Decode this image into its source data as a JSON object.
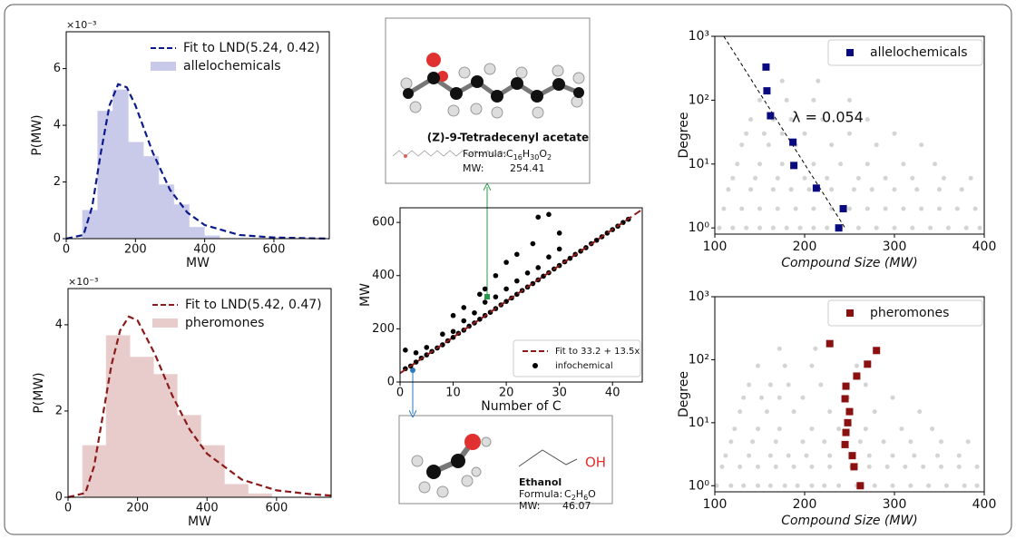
{
  "chart_data": [
    {
      "type": "histogram",
      "xlabel": "MW",
      "ylabel": "P(MW)",
      "y_offset_label": "×10⁻³",
      "xlim": [
        0,
        760
      ],
      "ylim": [
        0,
        7.3
      ],
      "xticks": [
        0,
        200,
        400,
        600
      ],
      "yticks": [
        0,
        2,
        4,
        6
      ],
      "legend": "upper right",
      "bins": [
        47,
        91,
        135,
        179,
        223,
        267,
        311,
        355,
        399,
        443
      ],
      "series": [
        {
          "name": "allelochemicals",
          "color": "#c9c9e9",
          "values": [
            1.0,
            4.5,
            5.25,
            3.4,
            2.9,
            1.9,
            1.2,
            0.4,
            0.1
          ]
        }
      ],
      "fit": {
        "name": "Fit to LND(5.24, 0.42)",
        "color": "#0c1b8a",
        "x": [
          0,
          50,
          75,
          100,
          125,
          150,
          175,
          200,
          250,
          300,
          350,
          400,
          500,
          600,
          760
        ],
        "y": [
          0,
          0.13,
          1.13,
          3.03,
          4.7,
          5.45,
          5.34,
          4.7,
          3.04,
          1.72,
          0.92,
          0.48,
          0.13,
          0.04,
          0
        ]
      }
    },
    {
      "type": "histogram",
      "xlabel": "MW",
      "ylabel": "P(MW)",
      "y_offset_label": "×10⁻³",
      "xlim": [
        0,
        757
      ],
      "ylim": [
        0,
        4.84
      ],
      "xticks": [
        0,
        200,
        400,
        600
      ],
      "yticks": [
        0,
        2,
        4
      ],
      "legend": "upper right",
      "bins": [
        42,
        110,
        178,
        246,
        314,
        382,
        450,
        518,
        586
      ],
      "series": [
        {
          "name": "pheromones",
          "color": "#e8cccc",
          "values": [
            1.2,
            3.75,
            3.25,
            2.85,
            1.9,
            1.2,
            0.3,
            0.08
          ]
        }
      ],
      "fit": {
        "name": "Fit to LND(5.42, 0.47)",
        "color": "#8b1a1a",
        "x": [
          0,
          50,
          75,
          100,
          125,
          150,
          175,
          200,
          250,
          300,
          350,
          400,
          500,
          600,
          700,
          757
        ],
        "y": [
          0,
          0.1,
          0.72,
          1.89,
          3.07,
          3.87,
          4.19,
          4.1,
          3.32,
          2.36,
          1.57,
          1.01,
          0.41,
          0.16,
          0.07,
          0.04
        ]
      }
    },
    {
      "type": "scatter",
      "xlabel": "Number of C",
      "ylabel": "MW",
      "xlim": [
        0,
        45.6
      ],
      "ylim": [
        0,
        655
      ],
      "xticks": [
        0,
        10,
        20,
        30,
        40
      ],
      "yticks": [
        0,
        200,
        400,
        600
      ],
      "legend": "lower right",
      "series": [
        {
          "name": "infochemical",
          "color": "#000000",
          "x": [
            2,
            3,
            4,
            5,
            6,
            7,
            8,
            9,
            10,
            10,
            11,
            12,
            12,
            13,
            14,
            14,
            15,
            16,
            16,
            17,
            18,
            18,
            19,
            20,
            20,
            21,
            22,
            22,
            23,
            24,
            24,
            25,
            26,
            26,
            27,
            28,
            28,
            29,
            30,
            30,
            31,
            32,
            33,
            34,
            35,
            36,
            37,
            38,
            39,
            40,
            41,
            42,
            43,
            10,
            12,
            15,
            16,
            18,
            20,
            22,
            25,
            28,
            30,
            1,
            1,
            3,
            5,
            8,
            26
          ],
          "y": [
            60,
            75,
            90,
            102,
            115,
            128,
            140,
            155,
            168,
            190,
            183,
            195,
            230,
            210,
            222,
            260,
            236,
            250,
            300,
            262,
            276,
            320,
            290,
            303,
            350,
            316,
            330,
            380,
            344,
            357,
            410,
            370,
            384,
            430,
            398,
            411,
            470,
            425,
            438,
            500,
            452,
            465,
            480,
            492,
            505,
            520,
            533,
            546,
            560,
            573,
            586,
            600,
            612,
            250,
            280,
            330,
            350,
            400,
            450,
            480,
            520,
            630,
            560,
            50,
            120,
            110,
            130,
            180,
            620
          ]
        }
      ],
      "fit": {
        "name": "Fit to 33.2 + 13.5x",
        "color": "#8b1a1a",
        "x": [
          0,
          45.6
        ],
        "y": [
          33.2,
          648.8
        ]
      }
    },
    {
      "type": "scatter",
      "ylog": true,
      "xlabel": "Compound Size (MW)",
      "ylabel": "Degree",
      "xlim": [
        100,
        400
      ],
      "ylim": [
        0.8,
        1000
      ],
      "xticks": [
        100,
        200,
        300,
        400
      ],
      "yticks": [
        {
          "value": 1,
          "label": "10⁰"
        },
        {
          "value": 10,
          "label": "10¹"
        },
        {
          "value": 100,
          "label": "10²"
        },
        {
          "value": 1000,
          "label": "10³"
        }
      ],
      "legend": "upper right",
      "annotation": "λ = 0.054",
      "background": {
        "color": "#d4d4d4",
        "x": [
          105,
          120,
          135,
          150,
          165,
          180,
          195,
          210,
          225,
          240,
          260,
          280,
          300,
          320,
          340,
          360,
          380,
          395,
          110,
          130,
          150,
          170,
          190,
          210,
          230,
          250,
          270,
          290,
          310,
          330,
          350,
          370,
          390,
          115,
          140,
          165,
          185,
          205,
          230,
          255,
          275,
          300,
          325,
          350,
          375,
          120,
          145,
          170,
          200,
          225,
          260,
          290,
          320,
          355,
          385,
          125,
          150,
          175,
          210,
          240,
          270,
          310,
          345,
          130,
          160,
          190,
          230,
          280,
          330,
          135,
          155,
          175,
          200,
          250,
          300,
          140,
          165,
          185,
          220,
          270,
          150,
          180,
          210,
          250,
          175,
          215
        ],
        "y": [
          1,
          1,
          1,
          1,
          1,
          1,
          1,
          1,
          1,
          1,
          1,
          1,
          1,
          1,
          1,
          1,
          1,
          1,
          2,
          2,
          2,
          2,
          2,
          2,
          2,
          2,
          2,
          2,
          2,
          2,
          2,
          2,
          2,
          4,
          4,
          4,
          4,
          4,
          4,
          4,
          4,
          4,
          4,
          4,
          4,
          6,
          6,
          6,
          6,
          6,
          6,
          6,
          6,
          6,
          6,
          10,
          10,
          10,
          10,
          10,
          10,
          10,
          10,
          20,
          20,
          20,
          20,
          20,
          20,
          30,
          30,
          30,
          30,
          30,
          30,
          50,
          50,
          50,
          50,
          50,
          100,
          100,
          100,
          100,
          200,
          200
        ]
      },
      "series": [
        {
          "name": "allelochemicals",
          "color": "#0a0a80",
          "x": [
            157,
            158,
            162,
            187,
            188,
            213,
            243,
            238
          ],
          "y": [
            330,
            140,
            57,
            22,
            9.5,
            4.2,
            2,
            1
          ]
        }
      ],
      "fit": {
        "color": "#000000",
        "x": [
          110,
          245
        ],
        "y": [
          1000,
          1
        ]
      }
    },
    {
      "type": "scatter",
      "ylog": true,
      "xlabel": "Compound Size (MW)",
      "ylabel": "Degree",
      "xlim": [
        100,
        400
      ],
      "ylim": [
        0.8,
        1000
      ],
      "xticks": [
        100,
        200,
        300,
        400
      ],
      "yticks": [
        {
          "value": 1,
          "label": "10⁰"
        },
        {
          "value": 10,
          "label": "10¹"
        },
        {
          "value": 100,
          "label": "10²"
        },
        {
          "value": 1000,
          "label": "10³"
        }
      ],
      "legend": "upper right",
      "background": {
        "color": "#d4d4d4",
        "x": [
          102,
          118,
          132,
          148,
          162,
          178,
          192,
          208,
          222,
          238,
          258,
          278,
          298,
          318,
          338,
          358,
          378,
          392,
          108,
          128,
          148,
          168,
          188,
          208,
          228,
          252,
          272,
          292,
          312,
          332,
          352,
          372,
          392,
          112,
          138,
          162,
          182,
          202,
          228,
          252,
          272,
          298,
          322,
          348,
          372,
          118,
          142,
          168,
          198,
          222,
          262,
          288,
          318,
          352,
          382,
          122,
          148,
          172,
          208,
          238,
          268,
          308,
          342,
          128,
          158,
          188,
          228,
          278,
          328,
          132,
          152,
          172,
          198,
          248,
          298,
          138,
          162,
          182,
          218,
          268,
          148,
          178,
          208,
          258,
          172,
          212
        ],
        "y": [
          1,
          1,
          1,
          1,
          1,
          1,
          1,
          1,
          1,
          1,
          1,
          1,
          1,
          1,
          1,
          1,
          1,
          1,
          2,
          2,
          2,
          2,
          2,
          2,
          2,
          2,
          2,
          2,
          2,
          2,
          2,
          2,
          2,
          3,
          3,
          3,
          3,
          3,
          3,
          3,
          3,
          3,
          3,
          3,
          3,
          5,
          5,
          5,
          5,
          5,
          5,
          5,
          5,
          5,
          5,
          8,
          8,
          8,
          8,
          8,
          8,
          8,
          8,
          15,
          15,
          15,
          15,
          15,
          15,
          25,
          25,
          25,
          25,
          25,
          25,
          40,
          40,
          40,
          40,
          40,
          80,
          80,
          80,
          80,
          150,
          150
        ]
      },
      "series": [
        {
          "name": "pheromones",
          "color": "#8b1010",
          "x": [
            228,
            280,
            270,
            258,
            246,
            245,
            250,
            248,
            246,
            245,
            253,
            255,
            262
          ],
          "y": [
            180,
            140,
            85,
            55,
            38,
            24,
            15,
            10,
            7,
            4.5,
            3,
            2,
            1
          ]
        }
      ]
    }
  ],
  "molecules": [
    {
      "name": "(Z)-9-Tetradecenyl acetate",
      "formula_label": "Formula:",
      "formula": [
        "C",
        "16",
        "H",
        "30",
        "O",
        "2"
      ],
      "mw_label": "MW:",
      "mw": 254.41
    },
    {
      "name": "Ethanol",
      "group": "OH",
      "formula_label": "Formula:",
      "formula": [
        "C",
        "2",
        "H",
        "6",
        "O"
      ],
      "mw_label": "MW:",
      "mw": 46.07
    }
  ]
}
